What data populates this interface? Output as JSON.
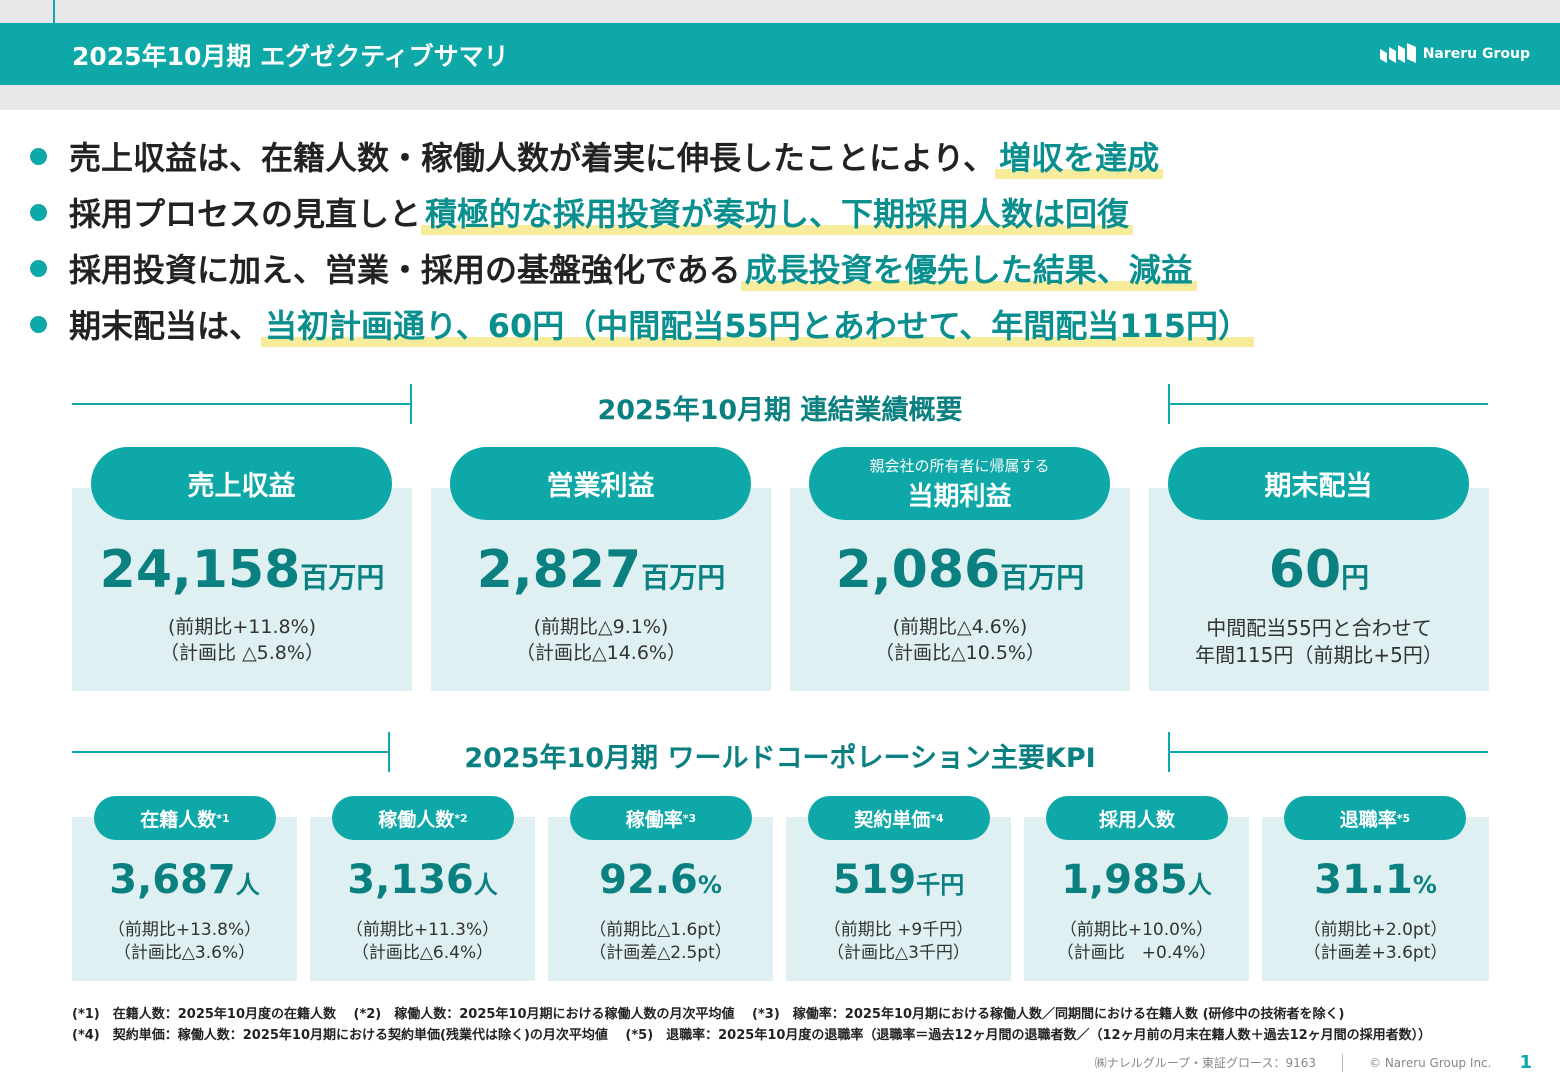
{
  "header": {
    "title": "2025年10月期 エグゼクティブサマリ",
    "logo_text": "Nareru Group"
  },
  "bullets": [
    {
      "text": "売上収益は、在籍人数・稼働人数が着実に伸長したことにより、",
      "highlight": "増収を達成"
    },
    {
      "text": "採用プロセスの見直しと",
      "highlight": "積極的な採用投資が奏功し、下期採用人数は回復"
    },
    {
      "text": "採用投資に加え、営業・採用の基盤強化である",
      "highlight": "成長投資を優先した結果、減益"
    },
    {
      "text": "期末配当は、",
      "highlight": "当初計画通り、60円（中間配当55円とあわせて、年間配当115円）"
    }
  ],
  "consolidated": {
    "title": "2025年10月期 連結業績概要",
    "cards": [
      {
        "label": "売上収益",
        "label_small": "",
        "value": "24,158",
        "unit": "百万円",
        "line1": "(前期比+11.8%)",
        "line2": "（計画比 △5.8%）"
      },
      {
        "label": "営業利益",
        "label_small": "",
        "value": "2,827",
        "unit": "百万円",
        "line1": "(前期比△9.1%)",
        "line2": "（計画比△14.6%）"
      },
      {
        "label": "当期利益",
        "label_small": "親会社の所有者に帰属する",
        "value": "2,086",
        "unit": "百万円",
        "line1": "(前期比△4.6%)",
        "line2": "（計画比△10.5%）"
      },
      {
        "label": "期末配当",
        "label_small": "",
        "value": "60",
        "unit": "円",
        "line1": "中間配当55円と合わせて",
        "line2": "年間115円（前期比+5円）"
      }
    ]
  },
  "kpi": {
    "title": "2025年10月期 ワールドコーポレーション主要KPI",
    "cards": [
      {
        "label": "在籍人数",
        "note": "*1",
        "value": "3,687",
        "unit": "人",
        "line1": "（前期比+13.8%）",
        "line2": "（計画比△3.6%）"
      },
      {
        "label": "稼働人数",
        "note": "*2",
        "value": "3,136",
        "unit": "人",
        "line1": "（前期比+11.3%）",
        "line2": "（計画比△6.4%）"
      },
      {
        "label": "稼働率",
        "note": "*3",
        "value": "92.6",
        "unit": "%",
        "line1": "（前期比△1.6pt）",
        "line2": "（計画差△2.5pt）"
      },
      {
        "label": "契約単価",
        "note": "*4",
        "value": "519",
        "unit": "千円",
        "line1": "（前期比 +9千円）",
        "line2": "（計画比△3千円）"
      },
      {
        "label": "採用人数",
        "note": "",
        "value": "1,985",
        "unit": "人",
        "line1": "（前期比+10.0%）",
        "line2": "（計画比　+0.4%）"
      },
      {
        "label": "退職率",
        "note": "*5",
        "value": "31.1",
        "unit": "%",
        "line1": "（前期比+2.0pt）",
        "line2": "（計画差+3.6pt）"
      }
    ]
  },
  "footnotes": {
    "line1": "(*1)　在籍人数：2025年10月度の在籍人数　 (*2)　稼働人数：2025年10月期における稼働人数の月次平均値　 (*3)　稼働率：2025年10月期における稼働人数／同期間における在籍人数 (研修中の技術者を除く)",
    "line2": "(*4)　契約単価：稼働人数：2025年10月期における契約単価(残業代は除く)の月次平均値　 (*5)　退職率：2025年10月度の退職率（退職率＝過去12ヶ月間の退職者数／（12ヶ月前の月末在籍人数＋過去12ヶ月間の採用者数））"
  },
  "bottom": {
    "company": "㈱ナレルグループ・東証グロース：9163",
    "copyright": "© Nareru Group Inc.",
    "page": "1"
  },
  "colors": {
    "accent": "#0ea8a8",
    "accent_dark": "#0a8080",
    "card_bg": "#dff0f2",
    "highlight": "#f6ec9c"
  }
}
